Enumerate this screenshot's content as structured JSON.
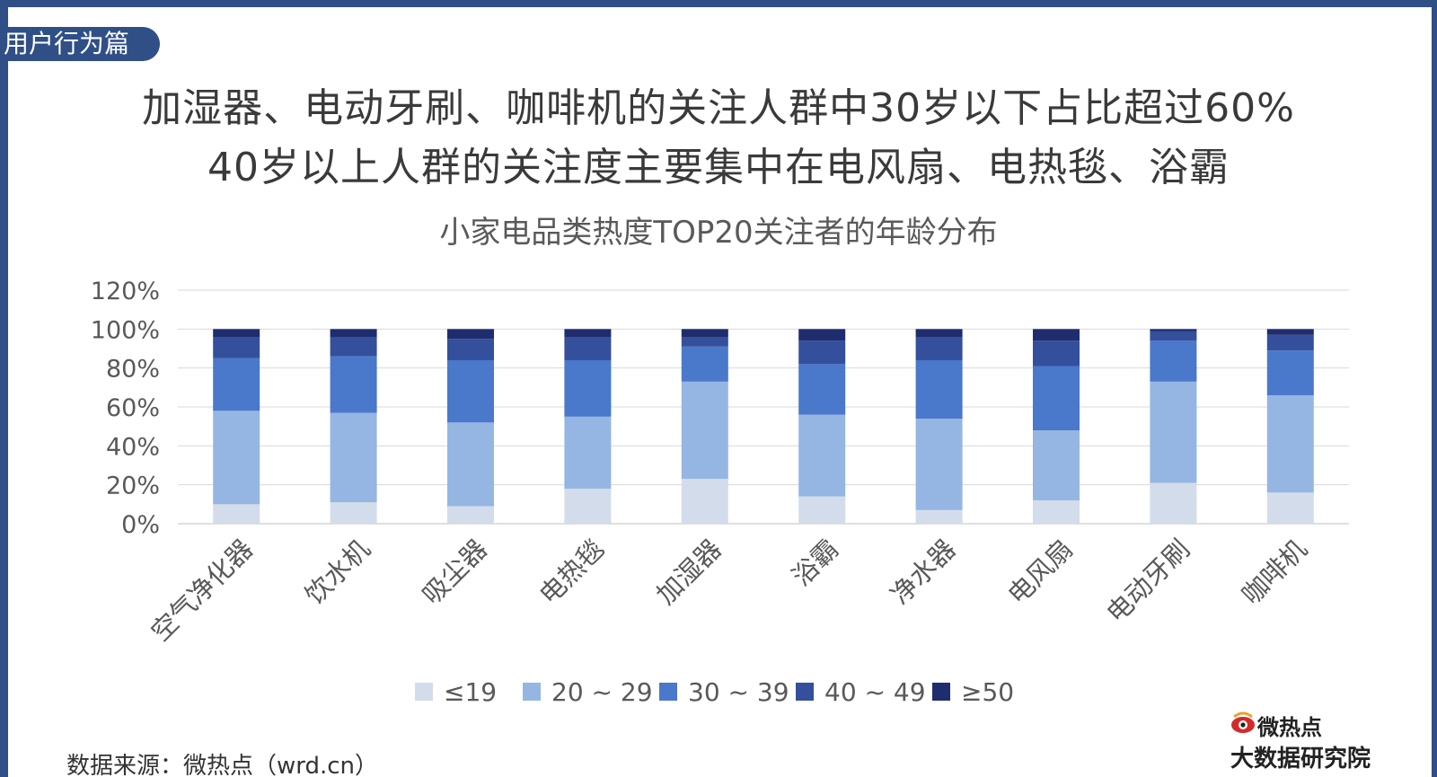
{
  "section_tag": "用户行为篇",
  "headline": {
    "line1": "加湿器、电动牙刷、咖啡机的关注人群中30岁以下占比超过60%",
    "line2": "40岁以上人群的关注度主要集中在电风扇、电热毯、浴霸"
  },
  "source": "数据来源：微热点（wrd.cn）",
  "logo": {
    "line1": "微热点",
    "line2": "大数据研究院"
  },
  "colors": {
    "frame": "#2f4f86",
    "series": [
      "#d3dceb",
      "#95b6e3",
      "#4a78cb",
      "#34509c",
      "#1f2d6e"
    ]
  },
  "chart_data": {
    "type": "bar",
    "stacked": true,
    "title": "小家电品类热度TOP20关注者的年龄分布",
    "categories": [
      "空气净化器",
      "饮水机",
      "吸尘器",
      "电热毯",
      "加湿器",
      "浴霸",
      "净水器",
      "电风扇",
      "电动牙刷",
      "咖啡机"
    ],
    "series": [
      {
        "name": "≤19",
        "values": [
          10,
          11,
          9,
          18,
          23,
          14,
          7,
          12,
          21,
          16
        ]
      },
      {
        "name": "20 ~ 29",
        "values": [
          48,
          46,
          43,
          37,
          50,
          42,
          47,
          36,
          52,
          50
        ]
      },
      {
        "name": "30 ~ 39",
        "values": [
          27,
          29,
          32,
          29,
          18,
          26,
          30,
          33,
          21,
          23
        ]
      },
      {
        "name": "40 ~ 49",
        "values": [
          11,
          10,
          11,
          12,
          5,
          12,
          12,
          13,
          5,
          8
        ]
      },
      {
        "name": "≥50",
        "values": [
          4,
          4,
          5,
          4,
          4,
          6,
          4,
          6,
          1,
          3
        ]
      }
    ],
    "y_ticks": [
      "0%",
      "20%",
      "40%",
      "60%",
      "80%",
      "100%",
      "120%"
    ],
    "ylim": [
      0,
      120
    ],
    "grid": true,
    "legend_position": "bottom"
  }
}
